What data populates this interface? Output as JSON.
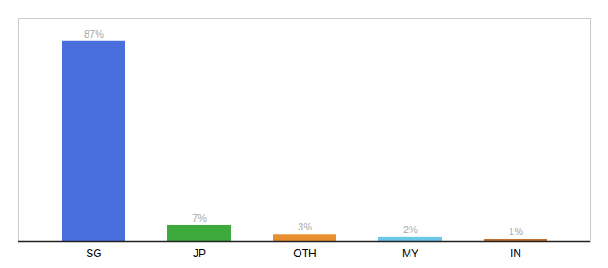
{
  "chart_data": {
    "type": "bar",
    "categories": [
      "SG",
      "JP",
      "OTH",
      "MY",
      "IN"
    ],
    "values": [
      87,
      7,
      3,
      2,
      1
    ],
    "value_labels": [
      "87%",
      "7%",
      "3%",
      "2%",
      "1%"
    ],
    "colors": [
      "#4a6edb",
      "#3daa3d",
      "#e89030",
      "#6dc8e8",
      "#c07030"
    ],
    "ylim": [
      0,
      97
    ],
    "data_labels": true,
    "tick_labels": "x",
    "grid": false
  }
}
